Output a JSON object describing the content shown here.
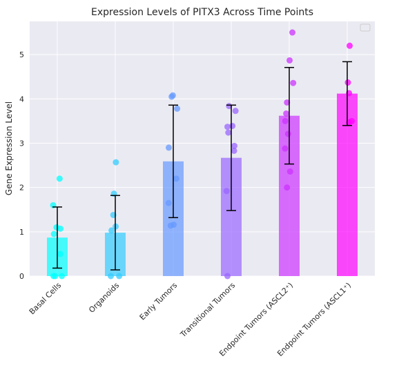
{
  "chart_data": {
    "type": "bar",
    "title": "Expression Levels of PITX3 Across Time Points",
    "xlabel": "",
    "ylabel": "Gene Expression Level",
    "ylim": [
      0,
      5.75
    ],
    "yticks": [
      0,
      1,
      2,
      3,
      4,
      5
    ],
    "grid": true,
    "legend": "top-right (empty)",
    "background": "#eaeaf2",
    "error_color": "#000000",
    "categories": [
      "Basal Cells",
      "Organoids",
      "Early Tumors",
      "Transitional Tumors",
      "Endpoint Tumors (ASCL2⁺)",
      "Endpoint Tumors (ASCL1⁺)"
    ],
    "bar_colors": [
      "#00ffff",
      "#33ccff",
      "#6699ff",
      "#9966ff",
      "#cc33ff",
      "#ff00ff"
    ],
    "values": [
      0.87,
      0.98,
      2.59,
      2.67,
      3.62,
      4.12
    ],
    "error": [
      0.69,
      0.84,
      1.27,
      1.19,
      1.09,
      0.72
    ],
    "points": [
      [
        2.2,
        1.6,
        1.1,
        1.07,
        0.95,
        0.5,
        0.0,
        0.0,
        0.0
      ],
      [
        2.57,
        1.86,
        1.38,
        1.12,
        1.03,
        0.0,
        0.0
      ],
      [
        4.08,
        4.05,
        3.78,
        2.9,
        2.2,
        1.65,
        1.16,
        1.14
      ],
      [
        3.84,
        3.73,
        3.39,
        3.37,
        3.24,
        2.94,
        2.83,
        1.92,
        0.0
      ],
      [
        5.5,
        4.87,
        4.36,
        3.92,
        3.67,
        3.5,
        3.21,
        2.88,
        2.36,
        2.0
      ],
      [
        5.2,
        4.37,
        4.13,
        3.5,
        3.47
      ]
    ]
  }
}
